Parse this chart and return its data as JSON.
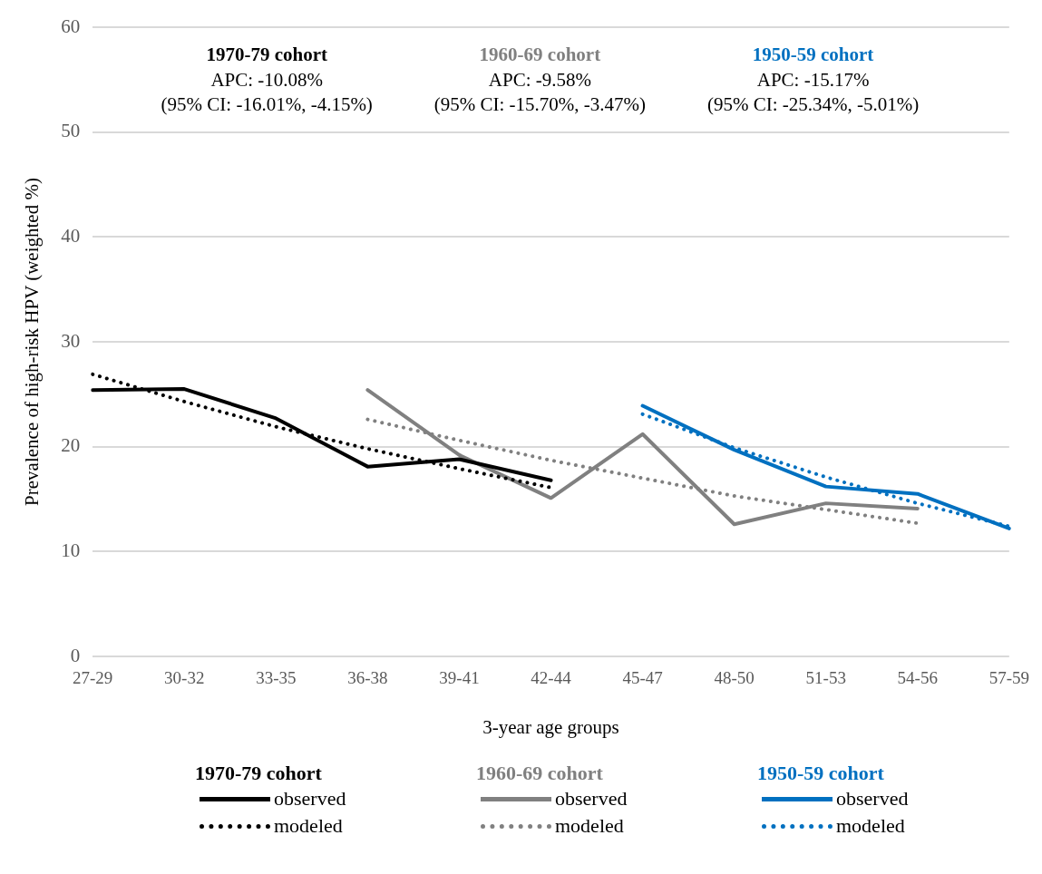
{
  "chart_data": {
    "type": "line",
    "xlabel": "3-year age groups",
    "ylabel": "Prevalence of high-risk HPV (weighted %)",
    "categories": [
      "27-29",
      "30-32",
      "33-35",
      "36-38",
      "39-41",
      "42-44",
      "45-47",
      "48-50",
      "51-53",
      "54-56",
      "57-59"
    ],
    "ylim": [
      0,
      60
    ],
    "yticks": [
      0,
      10,
      20,
      30,
      40,
      50,
      60
    ],
    "grid": "y",
    "legend": "bottom",
    "marker": "none",
    "series": [
      {
        "name": "observed",
        "color": "#000000",
        "line_style": "solid",
        "values": [
          25.4,
          25.5,
          22.7,
          18.1,
          18.8,
          16.8,
          null,
          null,
          null,
          null,
          null
        ]
      },
      {
        "name": "modeled",
        "color": "#000000",
        "line_style": "dotted",
        "values": [
          26.9,
          24.3,
          21.9,
          19.8,
          17.9,
          16.1,
          null,
          null,
          null,
          null,
          null
        ]
      },
      {
        "name": "observed",
        "color": "#808080",
        "line_style": "solid",
        "values": [
          null,
          null,
          null,
          25.4,
          19.2,
          15.1,
          21.2,
          12.6,
          14.6,
          14.1,
          null
        ]
      },
      {
        "name": "modeled",
        "color": "#808080",
        "line_style": "dotted",
        "values": [
          null,
          null,
          null,
          22.6,
          20.6,
          18.7,
          17.0,
          15.3,
          14.0,
          12.7,
          null
        ]
      },
      {
        "name": "observed",
        "color": "#0070c0",
        "line_style": "solid",
        "values": [
          null,
          null,
          null,
          null,
          null,
          null,
          23.9,
          19.7,
          16.2,
          15.5,
          12.2
        ]
      },
      {
        "name": "modeled",
        "color": "#0070c0",
        "line_style": "dotted",
        "values": [
          null,
          null,
          null,
          null,
          null,
          null,
          23.1,
          19.9,
          17.1,
          14.6,
          12.4
        ]
      }
    ],
    "annotations": [
      "1970-79 cohort",
      "APC: -10.08%",
      "(95% CI: -16.01%, -4.15%)",
      "1960-69 cohort",
      "APC: -9.58%",
      "(95% CI: -15.70%, -3.47%)",
      "1950-59 cohort",
      "APC: -15.17%",
      "(95% CI: -25.34%, -5.01%)",
      "1970-79 cohort",
      "1960-69 cohort",
      "1950-59 cohort"
    ]
  }
}
